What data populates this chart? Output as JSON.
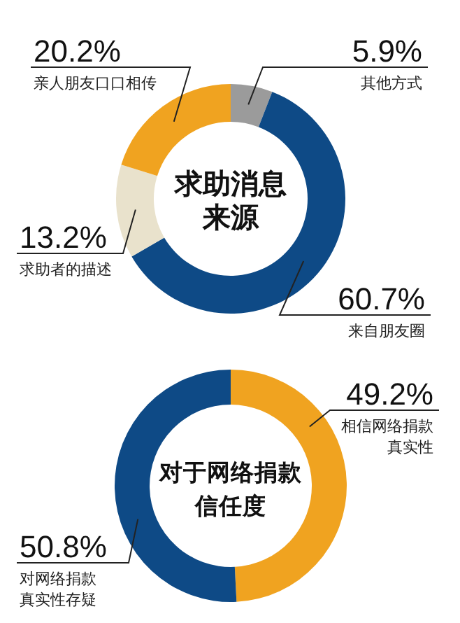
{
  "chart_data": [
    {
      "type": "donut",
      "title": "求助消息来源",
      "categories": [
        "其他方式",
        "来自朋友圈",
        "求助者的描述",
        "亲人朋友口口相传"
      ],
      "values": [
        5.9,
        60.7,
        13.2,
        20.2
      ],
      "colors": [
        "#9b9b9b",
        "#0e4a86",
        "#e9e2cc",
        "#f0a320"
      ],
      "value_labels": [
        "5.9%",
        "60.7%",
        "13.2%",
        "20.2%"
      ]
    },
    {
      "type": "donut",
      "title": "对于网络捐款信任度",
      "categories": [
        "相信网络捐款真实性",
        "对网络捐款真实性存疑"
      ],
      "values": [
        49.2,
        50.8
      ],
      "colors": [
        "#f0a320",
        "#0e4a86"
      ],
      "value_labels": [
        "49.2%",
        "50.8%"
      ]
    }
  ]
}
